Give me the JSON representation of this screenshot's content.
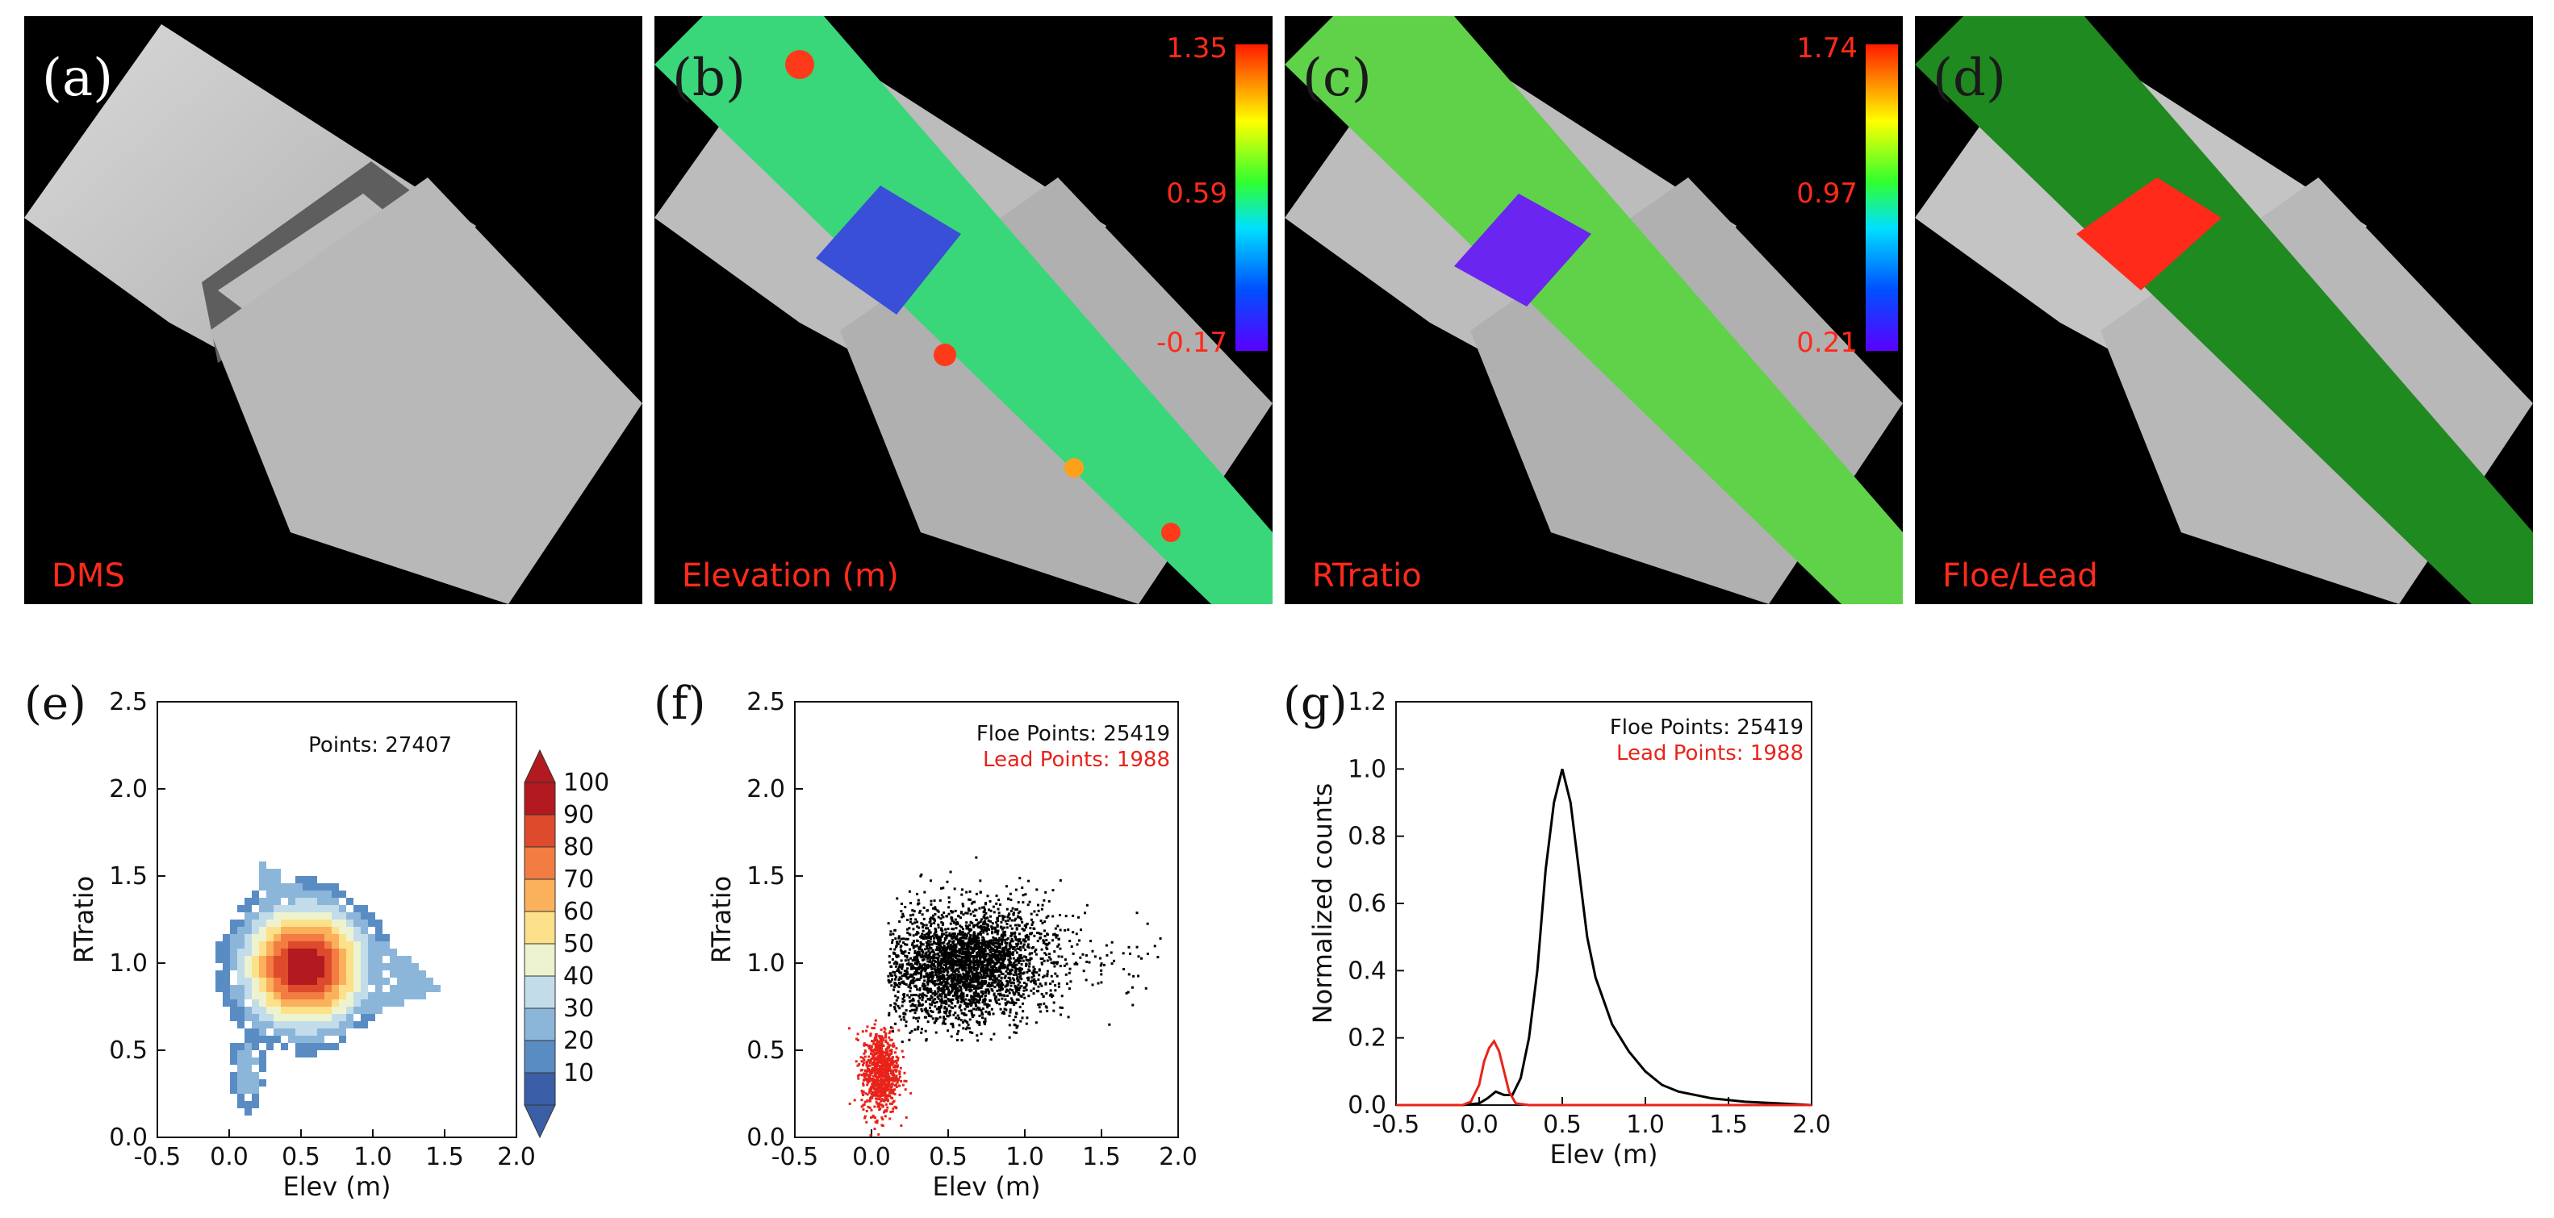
{
  "panels": {
    "a": {
      "label": "(a)",
      "caption": "DMS"
    },
    "b": {
      "label": "(b)",
      "caption": "Elevation (m)",
      "cbar": {
        "max": "1.35",
        "mid": "0.59",
        "min": "-0.17"
      }
    },
    "c": {
      "label": "(c)",
      "caption": "RTratio",
      "cbar": {
        "max": "1.74",
        "mid": "0.97",
        "min": "0.21"
      }
    },
    "d": {
      "label": "(d)",
      "caption": "Floe/Lead"
    },
    "e": {
      "label": "(e)"
    },
    "f": {
      "label": "(f)"
    },
    "g": {
      "label": "(g)"
    }
  },
  "colors": {
    "red": "#ff2a1a",
    "floe": "#000000",
    "lead": "#e8231a",
    "green": "#1f8a1f"
  },
  "chart_data": [
    {
      "type": "heatmap",
      "id": "e",
      "xlabel": "Elev (m)",
      "ylabel": "RTratio",
      "xlim": [
        -0.5,
        2.0
      ],
      "ylim": [
        0.0,
        2.5
      ],
      "xticks": [
        "-0.5",
        "0.0",
        "0.5",
        "1.0",
        "1.5",
        "2.0"
      ],
      "yticks": [
        "0.0",
        "0.5",
        "1.0",
        "1.5",
        "2.0",
        "2.5"
      ],
      "annotation": "Points: 27407",
      "colorbar": {
        "ticks": [
          "100",
          "90",
          "80",
          "70",
          "60",
          "50",
          "40",
          "30",
          "20",
          "10"
        ],
        "colors": [
          "#3b5fa6",
          "#5a8cc4",
          "#8cb6d9",
          "#c2dcea",
          "#eef3cf",
          "#fde08a",
          "#fbb05b",
          "#f27c41",
          "#de4a2c",
          "#b21a20"
        ]
      },
      "density_centers": [
        {
          "x": 0.5,
          "y": 1.0,
          "peak": 100
        },
        {
          "x": 0.1,
          "y": 0.4,
          "peak": 30
        }
      ]
    },
    {
      "type": "scatter",
      "id": "f",
      "xlabel": "Elev (m)",
      "ylabel": "RTratio",
      "xlim": [
        -0.5,
        2.0
      ],
      "ylim": [
        0.0,
        2.5
      ],
      "xticks": [
        "-0.5",
        "0.0",
        "0.5",
        "1.0",
        "1.5",
        "2.0"
      ],
      "yticks": [
        "0.0",
        "0.5",
        "1.0",
        "1.5",
        "2.0",
        "2.5"
      ],
      "series": [
        {
          "name": "Floe Points: 25419",
          "center": [
            0.6,
            1.0
          ],
          "count": 25419
        },
        {
          "name": "Lead Points: 1988",
          "center": [
            0.05,
            0.38
          ],
          "count": 1988
        }
      ]
    },
    {
      "type": "line",
      "id": "g",
      "xlabel": "Elev (m)",
      "ylabel": "Normalized counts",
      "xlim": [
        -0.5,
        2.0
      ],
      "ylim": [
        0.0,
        1.2
      ],
      "xticks": [
        "-0.5",
        "0.0",
        "0.5",
        "1.0",
        "1.5",
        "2.0"
      ],
      "yticks": [
        "0.0",
        "0.2",
        "0.4",
        "0.6",
        "0.8",
        "1.0",
        "1.2"
      ],
      "series": [
        {
          "name": "Floe Points: 25419",
          "x": [
            -0.5,
            -0.1,
            0.0,
            0.05,
            0.1,
            0.15,
            0.2,
            0.25,
            0.3,
            0.35,
            0.4,
            0.45,
            0.5,
            0.55,
            0.6,
            0.65,
            0.7,
            0.8,
            0.9,
            1.0,
            1.1,
            1.2,
            1.4,
            1.6,
            1.8,
            2.0
          ],
          "y": [
            0.0,
            0.0,
            0.005,
            0.02,
            0.04,
            0.03,
            0.03,
            0.08,
            0.2,
            0.4,
            0.7,
            0.9,
            1.0,
            0.9,
            0.7,
            0.5,
            0.38,
            0.24,
            0.16,
            0.1,
            0.06,
            0.04,
            0.02,
            0.01,
            0.005,
            0.0
          ]
        },
        {
          "name": "Lead Points: 1988",
          "x": [
            -0.5,
            -0.1,
            -0.05,
            0.0,
            0.03,
            0.06,
            0.09,
            0.12,
            0.15,
            0.18,
            0.22,
            0.3,
            2.0
          ],
          "y": [
            0.0,
            0.0,
            0.01,
            0.06,
            0.13,
            0.17,
            0.19,
            0.16,
            0.1,
            0.04,
            0.005,
            0.0,
            0.0
          ]
        }
      ]
    }
  ]
}
